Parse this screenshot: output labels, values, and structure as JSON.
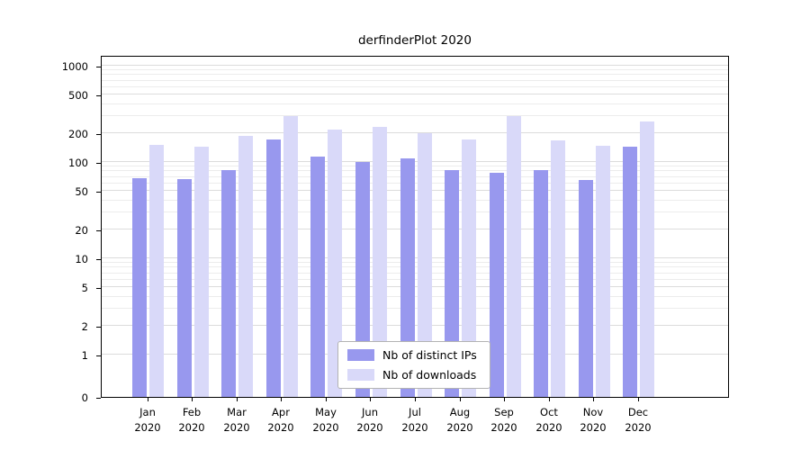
{
  "chart_data": {
    "type": "bar",
    "title": "derfinderPlot 2020",
    "scale": "log",
    "grid": true,
    "legend_position": "bottom-center",
    "categories": [
      "Jan",
      "Feb",
      "Mar",
      "Apr",
      "May",
      "Jun",
      "Jul",
      "Aug",
      "Sep",
      "Oct",
      "Nov",
      "Dec"
    ],
    "year_label": "2020",
    "yticks": [
      0,
      1,
      2,
      5,
      10,
      20,
      50,
      100,
      200,
      500,
      1000
    ],
    "ylim": [
      0,
      1200
    ],
    "series": [
      {
        "name": "Nb of distinct IPs",
        "color": "#9898ee",
        "values": [
          68,
          66,
          82,
          170,
          115,
          100,
          110,
          82,
          78,
          83,
          65,
          145
        ]
      },
      {
        "name": "Nb of downloads",
        "color": "#d9d9f9",
        "values": [
          150,
          143,
          185,
          300,
          215,
          230,
          200,
          172,
          300,
          168,
          148,
          265
        ]
      }
    ]
  }
}
